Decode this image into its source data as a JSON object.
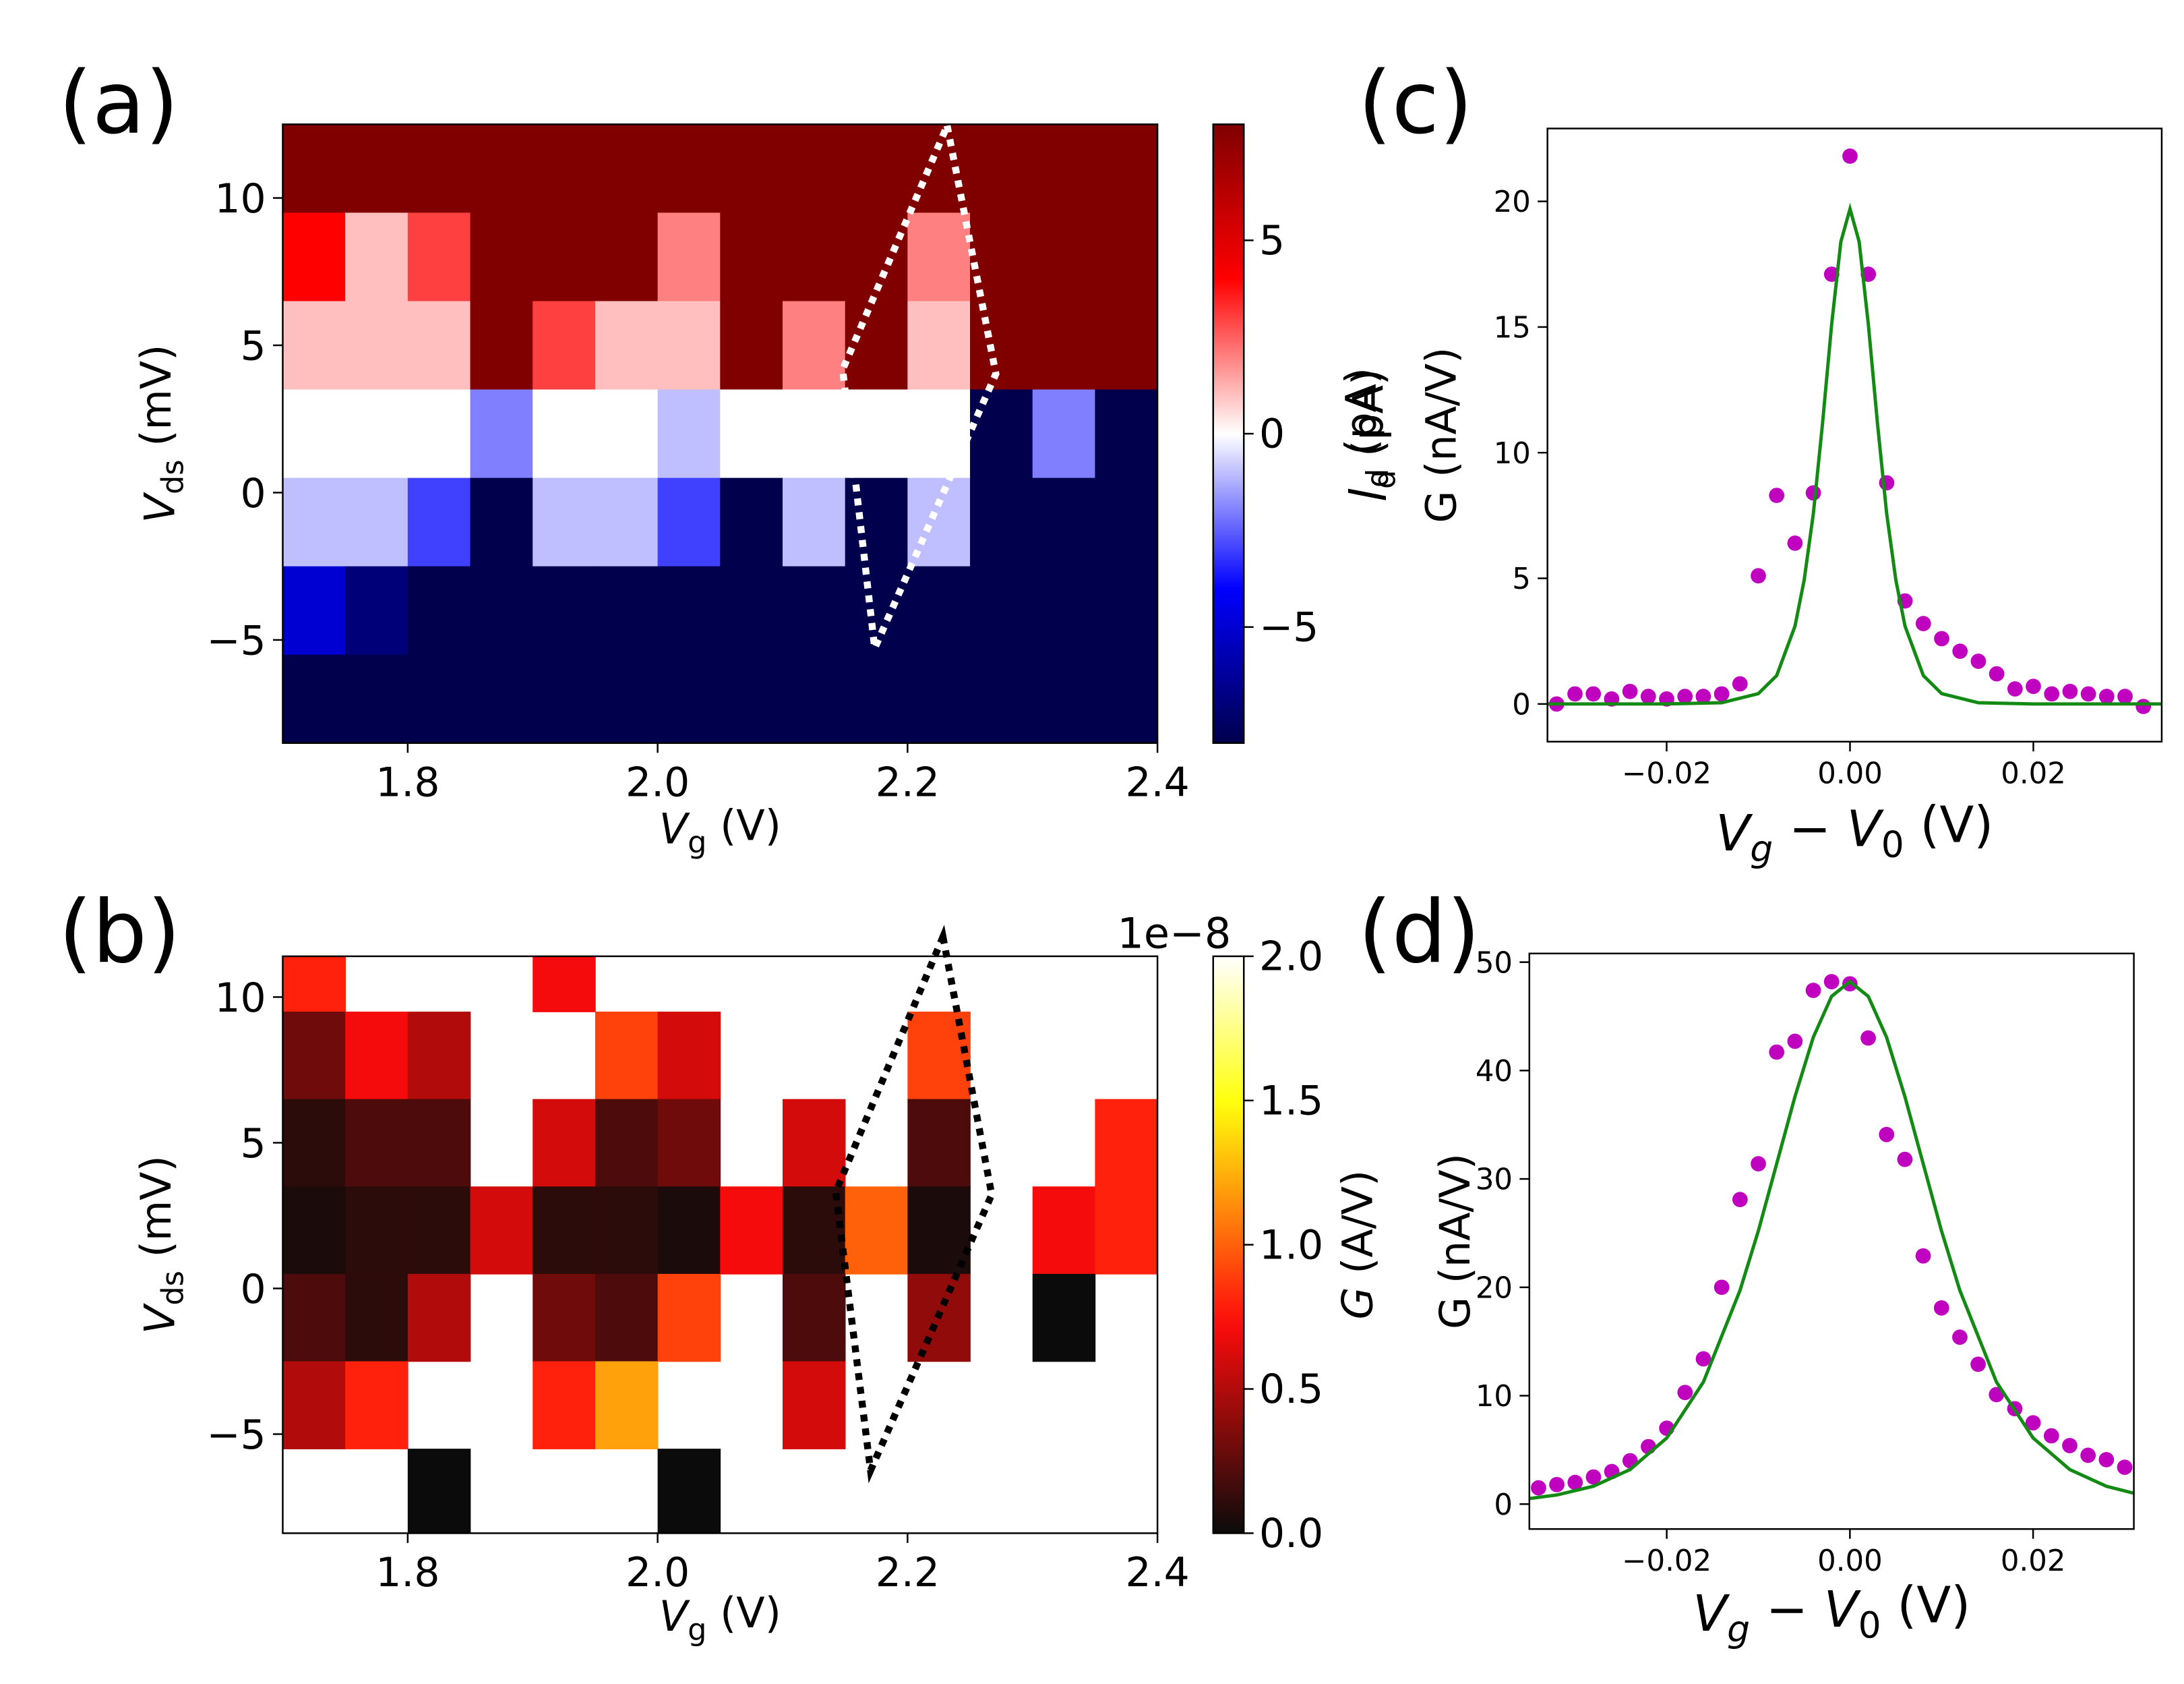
{
  "chart_data": [
    {
      "type": "heatmap",
      "panel_label": "(a)",
      "colormap": "seismic",
      "xlabel": [
        {
          "text": "V",
          "style": "italic"
        },
        {
          "text": "g",
          "style": "sub"
        },
        {
          "text": " (V)"
        }
      ],
      "ylabel": [
        {
          "text": "V",
          "style": "italic"
        },
        {
          "text": "ds",
          "style": "sub"
        },
        {
          "text": " (mV)"
        }
      ],
      "colorbar_label": [
        {
          "text": "I",
          "style": "italic"
        },
        {
          "text": "d",
          "style": "sub"
        },
        {
          "text": " (pA)"
        }
      ],
      "xlim": [
        1.7,
        2.4
      ],
      "ylim": [
        -8.5,
        12.5
      ],
      "xticks": [
        1.8,
        {
          "value": 2,
          "label": "2.0"
        },
        2.2,
        2.4
      ],
      "yticks": [
        {
          "value": -5,
          "label": "−5"
        },
        0,
        5,
        10
      ],
      "clim": [
        -8,
        8
      ],
      "cticks": [
        {
          "value": -5,
          "label": "−5"
        },
        0,
        5
      ],
      "x": [
        1.725,
        1.775,
        1.825,
        1.875,
        1.925,
        1.975,
        2.025,
        2.075,
        2.125,
        2.175,
        2.225,
        2.275,
        2.325,
        2.375
      ],
      "y": [
        11,
        8,
        5,
        2,
        -1,
        -4,
        -7
      ],
      "values": [
        [
          8,
          8,
          8,
          8,
          8,
          8,
          8,
          8,
          8,
          8,
          8,
          8,
          8,
          8
        ],
        [
          4,
          1,
          3,
          8,
          8,
          8,
          2,
          8,
          8,
          8,
          2,
          8,
          8,
          8
        ],
        [
          1,
          1,
          1,
          8,
          3,
          1,
          1,
          8,
          2,
          8,
          1,
          8,
          8,
          8
        ],
        [
          0,
          0,
          0,
          -2,
          0,
          0,
          -1,
          0,
          0,
          0,
          0,
          -8,
          -2,
          -8
        ],
        [
          -1,
          -1,
          -3,
          -8,
          -1,
          -1,
          -3,
          -8,
          -1,
          -8,
          -1,
          -8,
          -8,
          -8
        ],
        [
          -5,
          -7,
          -8,
          -8,
          -8,
          -8,
          -8,
          -8,
          -8,
          -8,
          -8,
          -8,
          -8,
          -8
        ],
        [
          -8,
          -8,
          -8,
          -8,
          -8,
          -8,
          -8,
          -8,
          -8,
          -8,
          -8,
          -8,
          -8,
          -8
        ]
      ]
    },
    {
      "type": "heatmap",
      "panel_label": "(b)",
      "colormap": "hot",
      "xlabel": [
        {
          "text": "V",
          "style": "italic"
        },
        {
          "text": "g",
          "style": "sub"
        },
        {
          "text": " (V)"
        }
      ],
      "ylabel": [
        {
          "text": "V",
          "style": "italic"
        },
        {
          "text": "ds",
          "style": "sub"
        },
        {
          "text": " (mV)"
        }
      ],
      "colorbar_label": [
        {
          "text": "G",
          "style": "italic"
        },
        {
          "text": " (A/V)"
        }
      ],
      "colorbar_offset": "1e−8",
      "xlim": [
        1.7,
        2.4
      ],
      "ylim": [
        -8.4,
        11.4
      ],
      "xticks": [
        1.8,
        {
          "value": 2,
          "label": "2.0"
        },
        2.2,
        2.4
      ],
      "yticks": [
        {
          "value": -5,
          "label": "−5"
        },
        0,
        5,
        10
      ],
      "clim": [
        0,
        2
      ],
      "cticks": [
        {
          "value": 0,
          "label": "0.0"
        },
        0.5,
        {
          "value": 1,
          "label": "1.0"
        },
        1.5,
        {
          "value": 2,
          "label": "2.0"
        }
      ],
      "x": [
        1.725,
        1.775,
        1.825,
        1.875,
        1.925,
        1.975,
        2.025,
        2.075,
        2.125,
        2.175,
        2.225,
        2.275,
        2.325,
        2.375
      ],
      "y": [
        11,
        8,
        5,
        2,
        -1,
        -4,
        -7
      ],
      "values": [
        [
          0.8,
          null,
          null,
          null,
          0.7,
          null,
          null,
          null,
          null,
          null,
          null,
          null,
          null,
          null
        ],
        [
          0.3,
          0.7,
          0.5,
          null,
          null,
          0.9,
          0.6,
          null,
          null,
          null,
          0.9,
          null,
          null,
          null
        ],
        [
          0.1,
          0.2,
          0.2,
          null,
          0.6,
          0.2,
          0.3,
          null,
          0.6,
          null,
          0.2,
          null,
          null,
          0.8
        ],
        [
          0.05,
          0.1,
          0.1,
          0.6,
          0.1,
          0.1,
          0.05,
          0.7,
          0.1,
          1.0,
          0.05,
          null,
          0.7,
          0.8
        ],
        [
          0.2,
          0.1,
          0.5,
          null,
          0.3,
          0.2,
          0.9,
          null,
          0.2,
          null,
          0.4,
          null,
          0,
          null
        ],
        [
          0.5,
          0.8,
          null,
          null,
          0.8,
          1.2,
          null,
          null,
          0.6,
          null,
          null,
          null,
          null,
          null
        ],
        [
          null,
          null,
          0,
          null,
          null,
          null,
          0,
          null,
          null,
          null,
          null,
          null,
          null,
          null
        ]
      ]
    },
    {
      "type": "scatter",
      "panel_label": "(c)",
      "xlabel": [
        {
          "text": "V",
          "style": "italic"
        },
        {
          "text": "g",
          "style": "sub-italic"
        },
        {
          "text": " − "
        },
        {
          "text": "V",
          "style": "italic"
        },
        {
          "text": "0",
          "style": "sub"
        },
        {
          "text": " (V)"
        }
      ],
      "ylabel": [
        {
          "text": "I",
          "style": "italic"
        },
        {
          "text": "d",
          "style": "sub"
        },
        {
          "text": " (pA)"
        }
      ],
      "ylabel2": [
        {
          "text": "G (nA/V)"
        }
      ],
      "xlim": [
        -0.033,
        0.034
      ],
      "ylim": [
        -1.5,
        22.9
      ],
      "xticks": [
        {
          "value": -0.02,
          "label": "−0.02"
        },
        {
          "value": 0,
          "label": "0.00"
        },
        0.02
      ],
      "yticks": [
        0,
        5,
        10,
        15,
        20
      ],
      "series": [
        {
          "kind": "points",
          "color": "#bf00bf",
          "x": [
            -0.032,
            -0.03,
            -0.028,
            -0.026,
            -0.024,
            -0.022,
            -0.02,
            -0.018,
            -0.016,
            -0.014,
            -0.012,
            -0.01,
            -0.008,
            -0.006,
            -0.004,
            -0.002,
            0,
            0.002,
            0.004,
            0.006,
            0.008,
            0.01,
            0.012,
            0.014,
            0.016,
            0.018,
            0.02,
            0.022,
            0.024,
            0.026,
            0.028,
            0.03,
            0.032
          ],
          "values": [
            0,
            0.4,
            0.4,
            0.2,
            0.5,
            0.3,
            0.2,
            0.3,
            0.3,
            0.4,
            0.8,
            5.1,
            8.3,
            6.4,
            8.4,
            17.1,
            21.8,
            17.1,
            8.8,
            4.1,
            3.2,
            2.6,
            2.1,
            1.7,
            1.2,
            0.6,
            0.7,
            0.4,
            0.5,
            0.4,
            0.3,
            0.3,
            -0.1
          ]
        },
        {
          "kind": "line",
          "color": "#138a13",
          "x": [
            -0.034,
            -0.02,
            -0.014,
            -0.01,
            -0.008,
            -0.006,
            -0.005,
            -0.004,
            -0.003,
            -0.002,
            -0.001,
            0,
            0.001,
            0.002,
            0.003,
            0.004,
            0.005,
            0.006,
            0.008,
            0.01,
            0.014,
            0.02,
            0.034
          ],
          "values": [
            0,
            0,
            0.05,
            0.41,
            1.13,
            3.1,
            4.93,
            7.57,
            11.15,
            15.11,
            18.39,
            19.7,
            18.39,
            15.11,
            11.15,
            7.57,
            4.93,
            3.1,
            1.13,
            0.41,
            0.05,
            0,
            0
          ]
        }
      ]
    },
    {
      "type": "scatter",
      "panel_label": "(d)",
      "xlabel": [
        {
          "text": "V",
          "style": "italic"
        },
        {
          "text": "g",
          "style": "sub-italic"
        },
        {
          "text": " − "
        },
        {
          "text": "V",
          "style": "italic"
        },
        {
          "text": "0",
          "style": "sub"
        },
        {
          "text": " (V)"
        }
      ],
      "ylabel": [
        {
          "text": "G (nA/V)"
        }
      ],
      "xlim": [
        -0.035,
        0.031
      ],
      "ylim": [
        -2.3,
        50.8
      ],
      "xticks": [
        {
          "value": -0.02,
          "label": "−0.02"
        },
        {
          "value": 0,
          "label": "0.00"
        },
        0.02
      ],
      "yticks": [
        0,
        10,
        20,
        30,
        40,
        50
      ],
      "series": [
        {
          "kind": "points",
          "color": "#bf00bf",
          "x": [
            -0.034,
            -0.032,
            -0.03,
            -0.028,
            -0.026,
            -0.024,
            -0.022,
            -0.02,
            -0.018,
            -0.016,
            -0.014,
            -0.012,
            -0.01,
            -0.008,
            -0.006,
            -0.004,
            -0.002,
            0,
            0.002,
            0.004,
            0.006,
            0.008,
            0.01,
            0.012,
            0.014,
            0.016,
            0.018,
            0.02,
            0.022,
            0.024,
            0.026,
            0.028,
            0.03
          ],
          "values": [
            1.5,
            1.8,
            2.0,
            2.5,
            3.0,
            4.0,
            5.3,
            7.0,
            10.3,
            13.4,
            20.0,
            28.1,
            31.4,
            41.7,
            42.7,
            47.4,
            48.2,
            48.0,
            43.0,
            34.1,
            31.8,
            22.9,
            18.1,
            15.4,
            12.9,
            10.1,
            8.8,
            7.5,
            6.3,
            5.4,
            4.5,
            4.1,
            3.4
          ]
        },
        {
          "kind": "line",
          "color": "#138a13",
          "x": [
            -0.035,
            -0.032,
            -0.028,
            -0.024,
            -0.02,
            -0.016,
            -0.012,
            -0.01,
            -0.008,
            -0.006,
            -0.004,
            -0.002,
            0,
            0.002,
            0.004,
            0.006,
            0.008,
            0.01,
            0.012,
            0.016,
            0.02,
            0.024,
            0.028,
            0.031
          ],
          "values": [
            0.51,
            0.84,
            1.65,
            3.19,
            6.1,
            11.26,
            19.72,
            25.2,
            31.4,
            37.6,
            43.07,
            46.85,
            48.2,
            46.85,
            43.07,
            37.6,
            31.4,
            25.2,
            19.72,
            11.26,
            6.1,
            3.19,
            1.65,
            1.0
          ]
        }
      ]
    }
  ]
}
